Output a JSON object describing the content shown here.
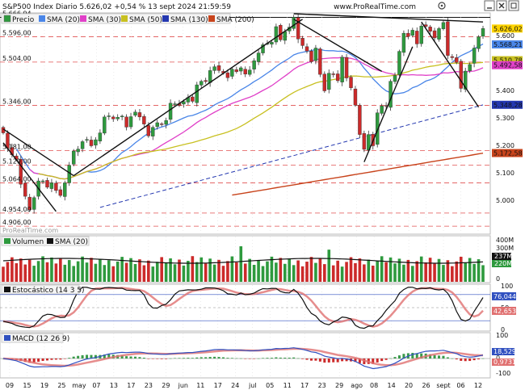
{
  "header": {
    "title": "S&P500 Index Diario 5.626,02 +0,54 % 13 sept 2024 21:59:59",
    "site": "www.ProRealTime.com",
    "watermark": "ProRealTime.com"
  },
  "colors": {
    "bg": "#ffffff",
    "grid": "#d9d9d9",
    "up": "#2e9a3e",
    "down": "#cc2a2a",
    "sma20": "#4a86e8",
    "sma30": "#e040c8",
    "sma50": "#c8c020",
    "sma130": "#2438b0",
    "sma200": "#c8441c",
    "stoch_k": "#111111",
    "stoch_d": "#e07070",
    "macd": "#3050c0",
    "signal": "#e07070",
    "vol_sma": "#111111",
    "ref_red": "#e05050"
  },
  "icons": [
    "gear-icon",
    "minimize-icon",
    "close-icon",
    "expand-icon"
  ],
  "chart_data": [
    {
      "type": "candlestick",
      "panel": "price",
      "legend": [
        "Precio",
        "SMA (20)",
        "SMA (30)",
        "SMA (50)",
        "SMA (130)",
        "SMA (200)"
      ],
      "ylim": [
        4880,
        5680
      ],
      "yticks": [
        4906,
        4954,
        5064,
        5129,
        5181,
        5346,
        5504,
        5596,
        5666.94
      ],
      "ytick_labels": [
        "4.906,00",
        "4.954,00",
        "5.064,00",
        "5.129,00",
        "5.181,00",
        "5.346,00",
        "5.504,00",
        "5.596,00",
        "5.666,94"
      ],
      "right_ticks": [
        5000,
        5100,
        5200,
        5300,
        5400,
        5600
      ],
      "right_tick_labels": [
        "5.000",
        "5.100",
        "5.200",
        "5.300",
        "5.400",
        "5.600"
      ],
      "right_values": [
        {
          "label": "5.626,02",
          "value": 5626.02,
          "color": "#ffd400"
        },
        {
          "label": "5.568,21",
          "value": 5568.21,
          "color": "#4a86e8"
        },
        {
          "label": "5.510,78",
          "value": 5510.78,
          "color": "#c8c020"
        },
        {
          "label": "5.492,58",
          "value": 5492.58,
          "color": "#e040c8"
        },
        {
          "label": "5.348,28",
          "value": 5348.28,
          "color": "#2438b0"
        },
        {
          "label": "5.172,58",
          "value": 5172.58,
          "color": "#c8441c"
        }
      ],
      "x_labels": [
        "09",
        "15",
        "19",
        "25",
        "may",
        "07",
        "13",
        "17",
        "23",
        "29",
        "jun",
        "11",
        "17",
        "24",
        "jul",
        "05",
        "11",
        "17",
        "23",
        "29",
        "ago",
        "08",
        "14",
        "20",
        "26",
        "sept",
        "06",
        "12"
      ],
      "close": [
        5246,
        5190,
        5166,
        5150,
        5059,
        5015,
        4966,
        5010,
        5071,
        5071,
        5048,
        5064,
        5036,
        5018,
        5064,
        5128,
        5180,
        5187,
        5214,
        5222,
        5199,
        5221,
        5246,
        5304,
        5308,
        5297,
        5303,
        5307,
        5267,
        5305,
        5322,
        5304,
        5278,
        5235,
        5266,
        5283,
        5277,
        5291,
        5354,
        5352,
        5346,
        5360,
        5375,
        5361,
        5421,
        5434,
        5433,
        5473,
        5487,
        5473,
        5464,
        5447,
        5478,
        5469,
        5483,
        5460,
        5475,
        5509,
        5537,
        5567,
        5572,
        5576,
        5633,
        5585,
        5615,
        5631,
        5667,
        5588,
        5564,
        5544,
        5505,
        5555,
        5459,
        5399,
        5463,
        5459,
        5436,
        5522,
        5446,
        5410,
        5347,
        5240,
        5186,
        5240,
        5199,
        5319,
        5344,
        5344,
        5434,
        5455,
        5543,
        5609,
        5597,
        5620,
        5570,
        5635,
        5634,
        5616,
        5592,
        5626,
        5648,
        5528,
        5520,
        5503,
        5408,
        5471,
        5495,
        5555,
        5596,
        5626
      ],
      "sma130_range": [
        4880,
        5348
      ],
      "sma200_range": [
        4880,
        5172
      ]
    },
    {
      "type": "bar",
      "panel": "volume",
      "legend": [
        "Volumen",
        "SMA (20)"
      ],
      "yticks_labels": [
        "400M",
        "300M",
        "237M",
        "220M",
        "0"
      ],
      "last_values": [
        "237M",
        "220M"
      ]
    },
    {
      "type": "line",
      "panel": "stochastic",
      "legend": [
        "Estocástico (14 3 5)"
      ],
      "yticks": [
        0,
        20,
        50,
        80,
        100
      ],
      "last_values": [
        {
          "label": "76,044",
          "value": 76.044
        },
        {
          "label": "42,653",
          "value": 42.653
        }
      ]
    },
    {
      "type": "bar",
      "panel": "macd",
      "legend": [
        "MACD (12 26 9)"
      ],
      "yticks_labels": [
        "100",
        "0",
        "-100"
      ],
      "last_values": [
        {
          "label": "18,529",
          "value": 18.529
        },
        {
          "label": "0,9731",
          "value": 0.9731
        }
      ]
    }
  ]
}
